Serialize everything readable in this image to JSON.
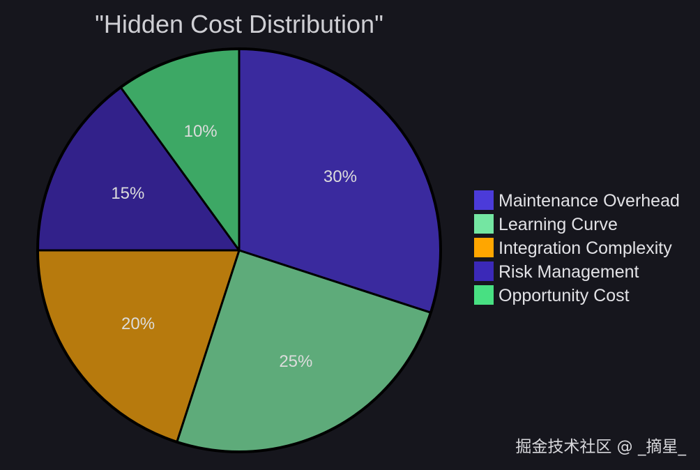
{
  "chart_data": {
    "type": "pie",
    "title": "\"Hidden Cost Distribution\"",
    "slices": [
      {
        "label": "Maintenance Overhead",
        "value": 30,
        "display": "30%",
        "color": "#3a2a9e",
        "legend_color": "#4b3bd9"
      },
      {
        "label": "Learning Curve",
        "value": 25,
        "display": "25%",
        "color": "#5eab7a",
        "legend_color": "#74e6a2"
      },
      {
        "label": "Integration Complexity",
        "value": 20,
        "display": "20%",
        "color": "#b77a0d",
        "legend_color": "#ffa600"
      },
      {
        "label": "Risk Management",
        "value": 15,
        "display": "15%",
        "color": "#32218a",
        "legend_color": "#3b29b8"
      },
      {
        "label": "Opportunity Cost",
        "value": 10,
        "display": "10%",
        "color": "#3da865",
        "legend_color": "#48e082"
      }
    ],
    "start_angle": "12 o'clock",
    "direction": "clockwise",
    "legend_placement": "right"
  },
  "watermark": "掘金技术社区 @ _摘星_",
  "colors": {
    "background": "#16161d",
    "slice_border": "#000000",
    "title_color": "#cfcfd4"
  }
}
